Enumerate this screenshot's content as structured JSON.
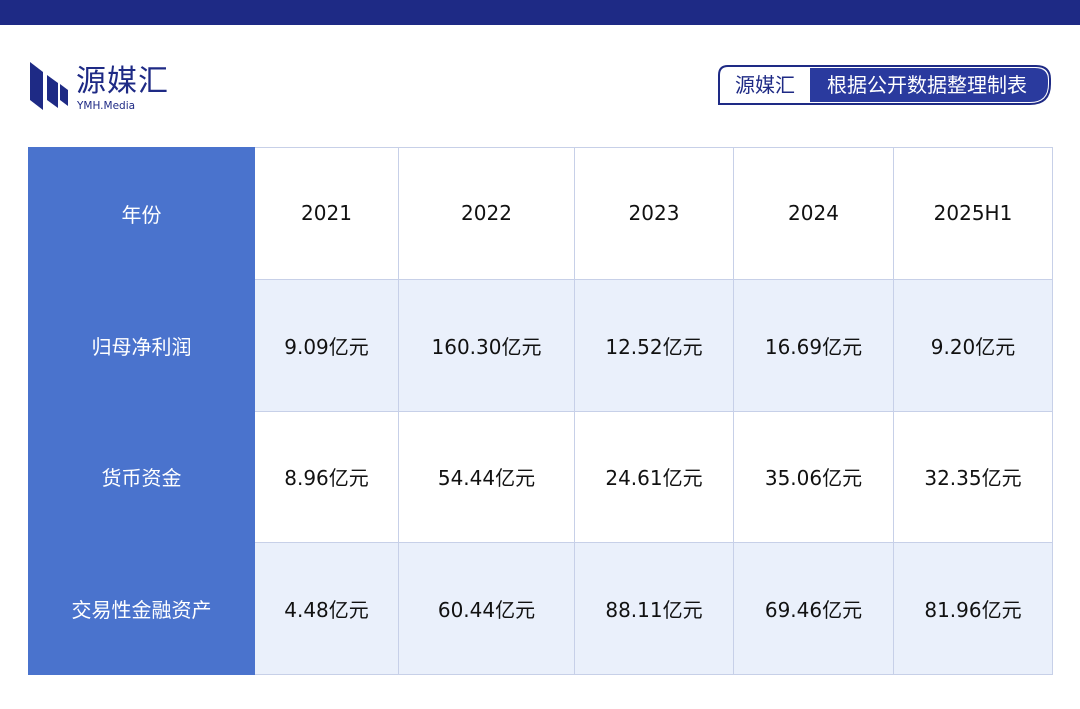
{
  "brand": {
    "name": "源媒汇",
    "subtitle": "YMH.Media"
  },
  "source_badge": {
    "name": "源媒汇",
    "text": "根据公开数据整理制表"
  },
  "colors": {
    "top_bar": "#1e2a85",
    "brand_primary": "#1e2a85",
    "row_header_bg": "#4a73cd",
    "band_bg": "#eaf0fb",
    "grid": "#c7d0e8"
  },
  "table": {
    "header": {
      "label": "年份",
      "years": [
        "2021",
        "2022",
        "2023",
        "2024",
        "2025H1"
      ]
    },
    "rows": [
      {
        "label": "归母净利润",
        "values": [
          "9.09亿元",
          "160.30亿元",
          "12.52亿元",
          "16.69亿元",
          "9.20亿元"
        ]
      },
      {
        "label": "货币资金",
        "values": [
          "8.96亿元",
          "54.44亿元",
          "24.61亿元",
          "35.06亿元",
          "32.35亿元"
        ]
      },
      {
        "label": "交易性金融资产",
        "values": [
          "4.48亿元",
          "60.44亿元",
          "88.11亿元",
          "69.46亿元",
          "81.96亿元"
        ]
      }
    ]
  }
}
